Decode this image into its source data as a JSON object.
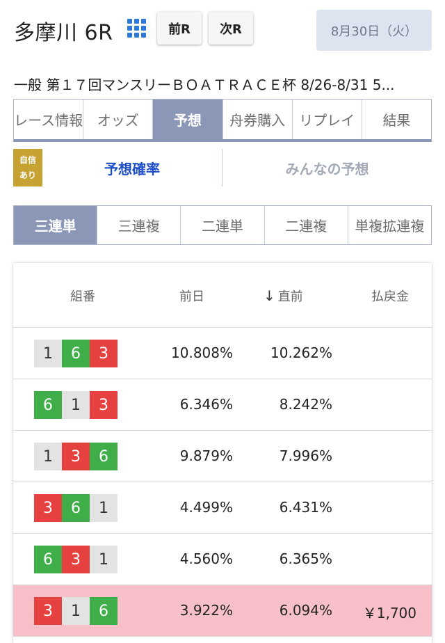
{
  "header": {
    "venue": "多摩川 6R",
    "prev_label": "前R",
    "next_label": "次R",
    "date": "8月30日（火）",
    "grid_icon": "grid-icon"
  },
  "race_title": "一般 第１７回マンスリーＢＯＡＴＲＡＣＥ杯 8/26-8/31 5...",
  "main_tabs": [
    "レース情報",
    "オッズ",
    "予想",
    "舟券購入",
    "リプレイ",
    "結果"
  ],
  "main_tabs_active": 2,
  "badge": {
    "line1": "自信",
    "line2": "あり"
  },
  "sub_tabs": {
    "active": "予想確率",
    "other": "みんなの予想"
  },
  "bet_tabs": [
    "三連単",
    "三連複",
    "二連単",
    "二連複",
    "単複拡連複"
  ],
  "bet_tabs_active": 0,
  "table": {
    "headers": {
      "combo": "組番",
      "prev": "前日",
      "now_arrow": "↓",
      "now": "直前",
      "payout": "払戻金"
    },
    "rows": [
      {
        "boats": [
          "1",
          "6",
          "3"
        ],
        "prev": "10.808%",
        "now": "10.262%",
        "payout": "",
        "hit": false
      },
      {
        "boats": [
          "6",
          "1",
          "3"
        ],
        "prev": "6.346%",
        "now": "8.242%",
        "payout": "",
        "hit": false
      },
      {
        "boats": [
          "1",
          "3",
          "6"
        ],
        "prev": "9.879%",
        "now": "7.996%",
        "payout": "",
        "hit": false
      },
      {
        "boats": [
          "3",
          "6",
          "1"
        ],
        "prev": "4.499%",
        "now": "6.431%",
        "payout": "",
        "hit": false
      },
      {
        "boats": [
          "6",
          "3",
          "1"
        ],
        "prev": "4.560%",
        "now": "6.365%",
        "payout": "",
        "hit": false
      },
      {
        "boats": [
          "3",
          "1",
          "6"
        ],
        "prev": "3.922%",
        "now": "6.094%",
        "payout": "￥1,700",
        "hit": true
      }
    ]
  },
  "colors": {
    "tab_active": "#8b97b6",
    "boat_1": "#e3e3e3",
    "boat_3": "#e54141",
    "boat_6": "#3fae49",
    "hit_row": "#f7c0c8",
    "badge": "#c6a232",
    "link_blue": "#1f4fc8"
  }
}
